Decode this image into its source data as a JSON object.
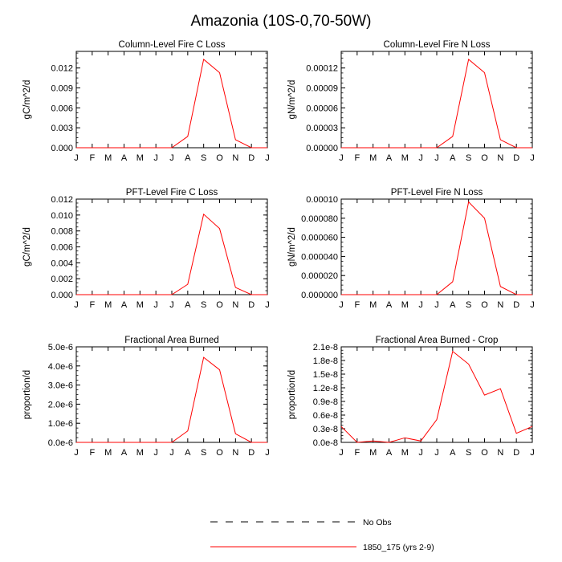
{
  "figure": {
    "title": "Amazonia (10S-0,70-50W)"
  },
  "legend": [
    {
      "label": "No Obs",
      "color": "#000000",
      "style": "dashed"
    },
    {
      "label": "1850_175 (yrs 2-9)",
      "color": "#ff0000",
      "style": "solid"
    }
  ],
  "chart_data": [
    {
      "type": "line",
      "title": "Column-Level Fire C Loss",
      "xlabel": "",
      "ylabel": "gC/m^2/d",
      "x": [
        "J",
        "F",
        "M",
        "A",
        "M",
        "J",
        "J",
        "A",
        "S",
        "O",
        "N",
        "D",
        "J"
      ],
      "ylim": [
        0,
        0.0145
      ],
      "yticks": [
        0,
        0.003,
        0.006,
        0.009,
        0.012
      ],
      "ytick_labels": [
        "0.000",
        "0.003",
        "0.006",
        "0.009",
        "0.012"
      ],
      "series": [
        {
          "name": "1850_175 (yrs 2-9)",
          "color": "#ff0000",
          "values": [
            0,
            0,
            0,
            0,
            0,
            0,
            0,
            0.0017,
            0.0133,
            0.0113,
            0.0012,
            0,
            0
          ]
        }
      ]
    },
    {
      "type": "line",
      "title": "Column-Level Fire N Loss",
      "xlabel": "",
      "ylabel": "gN/m^2/d",
      "x": [
        "J",
        "F",
        "M",
        "A",
        "M",
        "J",
        "J",
        "A",
        "S",
        "O",
        "N",
        "D",
        "J"
      ],
      "ylim": [
        0,
        0.000145
      ],
      "yticks": [
        0,
        3e-05,
        6e-05,
        9e-05,
        0.00012
      ],
      "ytick_labels": [
        "0.00000",
        "0.00003",
        "0.00006",
        "0.00009",
        "0.00012"
      ],
      "series": [
        {
          "name": "1850_175 (yrs 2-9)",
          "color": "#ff0000",
          "values": [
            0,
            0,
            0,
            0,
            0,
            0,
            0,
            1.7e-05,
            0.000133,
            0.000113,
            1.2e-05,
            0,
            0
          ]
        }
      ]
    },
    {
      "type": "line",
      "title": "PFT-Level Fire C Loss",
      "xlabel": "",
      "ylabel": "gC/m^2/d",
      "x": [
        "J",
        "F",
        "M",
        "A",
        "M",
        "J",
        "J",
        "A",
        "S",
        "O",
        "N",
        "D",
        "J"
      ],
      "ylim": [
        0,
        0.012
      ],
      "yticks": [
        0,
        0.002,
        0.004,
        0.006,
        0.008,
        0.01,
        0.012
      ],
      "ytick_labels": [
        "0.000",
        "0.002",
        "0.004",
        "0.006",
        "0.008",
        "0.010",
        "0.012"
      ],
      "series": [
        {
          "name": "1850_175 (yrs 2-9)",
          "color": "#ff0000",
          "values": [
            0,
            0,
            0,
            0,
            0,
            0,
            0,
            0.0013,
            0.0101,
            0.0083,
            0.0009,
            0,
            0
          ]
        }
      ]
    },
    {
      "type": "line",
      "title": "PFT-Level Fire N Loss",
      "xlabel": "",
      "ylabel": "gN/m^2/d",
      "x": [
        "J",
        "F",
        "M",
        "A",
        "M",
        "J",
        "J",
        "A",
        "S",
        "O",
        "N",
        "D",
        "J"
      ],
      "ylim": [
        0,
        0.0001
      ],
      "yticks": [
        0,
        2e-05,
        4e-05,
        6e-05,
        8e-05,
        0.0001
      ],
      "ytick_labels": [
        "0.000000",
        "0.000020",
        "0.000040",
        "0.000060",
        "0.000080",
        "0.00010"
      ],
      "series": [
        {
          "name": "1850_175 (yrs 2-9)",
          "color": "#ff0000",
          "values": [
            0,
            0,
            0,
            0,
            0,
            0,
            0,
            1.35e-05,
            9.7e-05,
            8e-05,
            8.5e-06,
            0,
            0
          ]
        }
      ]
    },
    {
      "type": "line",
      "title": "Fractional Area Burned",
      "xlabel": "",
      "ylabel": "proportion/d",
      "x": [
        "J",
        "F",
        "M",
        "A",
        "M",
        "J",
        "J",
        "A",
        "S",
        "O",
        "N",
        "D",
        "J"
      ],
      "ylim": [
        0,
        5e-06
      ],
      "yticks": [
        0,
        1e-06,
        2e-06,
        3e-06,
        4e-06,
        5e-06
      ],
      "ytick_labels": [
        "0.0e-6",
        "1.0e-6",
        "2.0e-6",
        "3.0e-6",
        "4.0e-6",
        "5.0e-6"
      ],
      "series": [
        {
          "name": "1850_175 (yrs 2-9)",
          "color": "#ff0000",
          "values": [
            0,
            0,
            0,
            0,
            0,
            0,
            0,
            6e-07,
            4.45e-06,
            3.8e-06,
            4.5e-07,
            0,
            0
          ]
        }
      ]
    },
    {
      "type": "line",
      "title": "Fractional Area Burned - Crop",
      "xlabel": "",
      "ylabel": "proportion/d",
      "x": [
        "J",
        "F",
        "M",
        "A",
        "M",
        "J",
        "J",
        "A",
        "S",
        "O",
        "N",
        "D",
        "J"
      ],
      "ylim": [
        0,
        2.1e-08
      ],
      "yticks": [
        0,
        3e-09,
        6e-09,
        9e-09,
        1.2e-08,
        1.5e-08,
        1.8e-08,
        2.1e-08
      ],
      "ytick_labels": [
        "0.0e-8",
        "0.3e-8",
        "0.6e-8",
        "0.9e-8",
        "1.2e-8",
        "1.5e-8",
        "1.8e-8",
        "2.1e-8"
      ],
      "series": [
        {
          "name": "1850_175 (yrs 2-9)",
          "color": "#ff0000",
          "values": [
            3.5e-09,
            0.0,
            3e-10,
            0.0,
            1e-09,
            3e-10,
            5e-09,
            2e-08,
            1.72e-08,
            1.04e-08,
            1.18e-08,
            2e-09,
            3.5e-09
          ]
        }
      ]
    }
  ]
}
